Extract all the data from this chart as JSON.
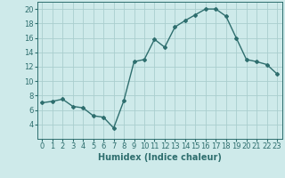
{
  "x": [
    0,
    1,
    2,
    3,
    4,
    5,
    6,
    7,
    8,
    9,
    10,
    11,
    12,
    13,
    14,
    15,
    16,
    17,
    18,
    19,
    20,
    21,
    22,
    23
  ],
  "y": [
    7,
    7.2,
    7.5,
    6.5,
    6.3,
    5.2,
    5.0,
    3.5,
    7.3,
    12.7,
    13.0,
    15.8,
    14.7,
    17.5,
    18.4,
    19.2,
    20.0,
    20.0,
    19.0,
    16.0,
    13.0,
    12.7,
    12.3,
    11.0
  ],
  "line_color": "#2e6e6e",
  "marker": "D",
  "marker_size": 2,
  "bg_color": "#ceeaea",
  "grid_color": "#aacece",
  "xlabel": "Humidex (Indice chaleur)",
  "xlim": [
    -0.5,
    23.5
  ],
  "ylim": [
    2,
    21
  ],
  "yticks": [
    4,
    6,
    8,
    10,
    12,
    14,
    16,
    18,
    20
  ],
  "xticks": [
    0,
    1,
    2,
    3,
    4,
    5,
    6,
    7,
    8,
    9,
    10,
    11,
    12,
    13,
    14,
    15,
    16,
    17,
    18,
    19,
    20,
    21,
    22,
    23
  ],
  "xlabel_fontsize": 7,
  "tick_fontsize": 6,
  "line_width": 1.0
}
